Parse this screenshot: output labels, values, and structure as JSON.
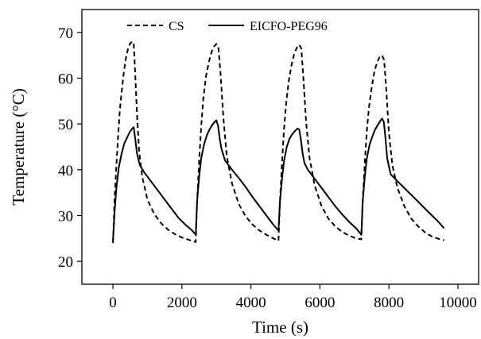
{
  "chart_data": {
    "type": "line",
    "title": "",
    "xlabel": "Time (s)",
    "ylabel": "Temperature (°C)",
    "xlim": [
      -900,
      10600
    ],
    "ylim": [
      15,
      75
    ],
    "xticks": [
      0,
      2000,
      4000,
      6000,
      8000,
      10000
    ],
    "yticks": [
      20,
      30,
      40,
      50,
      60,
      70
    ],
    "grid": false,
    "legend": "top-left",
    "series": [
      {
        "name": "CS",
        "style": "dashed",
        "color": "#000000",
        "x": [
          0,
          50,
          100,
          150,
          200,
          260,
          320,
          380,
          440,
          500,
          560,
          600,
          640,
          700,
          760,
          850,
          1000,
          1200,
          1400,
          1600,
          1800,
          2000,
          2200,
          2400,
          2440,
          2500,
          2560,
          2620,
          2700,
          2780,
          2860,
          2940,
          3000,
          3060,
          3120,
          3200,
          3300,
          3450,
          3650,
          3850,
          4050,
          4250,
          4450,
          4650,
          4800,
          4840,
          4900,
          4960,
          5020,
          5100,
          5180,
          5260,
          5340,
          5400,
          5460,
          5520,
          5600,
          5700,
          5850,
          6050,
          6250,
          6450,
          6650,
          6850,
          7050,
          7200,
          7240,
          7300,
          7360,
          7420,
          7500,
          7580,
          7660,
          7740,
          7800,
          7860,
          7920,
          8000,
          8100,
          8250,
          8450,
          8650,
          8850,
          9050,
          9250,
          9450,
          9600
        ],
        "y": [
          24.0,
          34.0,
          41.0,
          47.5,
          53.0,
          57.5,
          61.5,
          64.5,
          66.5,
          67.6,
          68.0,
          67.8,
          62.0,
          52.0,
          44.0,
          38.5,
          33.5,
          30.3,
          28.3,
          26.9,
          25.9,
          25.2,
          24.7,
          24.2,
          33.0,
          42.0,
          49.5,
          55.5,
          60.5,
          63.5,
          65.8,
          67.0,
          67.5,
          66.5,
          61.0,
          51.5,
          43.0,
          37.0,
          32.5,
          29.8,
          28.0,
          26.7,
          25.8,
          25.0,
          24.5,
          33.0,
          41.5,
          49.0,
          54.5,
          59.5,
          63.0,
          65.5,
          66.8,
          67.3,
          66.5,
          60.0,
          50.5,
          42.5,
          36.5,
          32.0,
          29.3,
          27.6,
          26.4,
          25.6,
          25.0,
          24.8,
          33.0,
          41.5,
          48.5,
          53.5,
          58.0,
          61.5,
          63.5,
          64.8,
          65.0,
          64.0,
          58.0,
          48.0,
          41.0,
          36.0,
          32.0,
          29.3,
          27.6,
          26.3,
          25.4,
          24.9,
          24.6
        ]
      },
      {
        "name": "EICFO-PEG96",
        "style": "solid",
        "color": "#000000",
        "x": [
          0,
          50,
          100,
          170,
          250,
          330,
          410,
          490,
          560,
          600,
          650,
          700,
          780,
          900,
          1100,
          1300,
          1500,
          1700,
          1900,
          2100,
          2300,
          2400,
          2440,
          2500,
          2560,
          2640,
          2720,
          2800,
          2880,
          2950,
          3000,
          3050,
          3100,
          3150,
          3250,
          3450,
          3650,
          3850,
          4050,
          4250,
          4450,
          4650,
          4800,
          4840,
          4900,
          4960,
          5040,
          5120,
          5200,
          5280,
          5350,
          5400,
          5450,
          5500,
          5550,
          5650,
          5850,
          6050,
          6250,
          6450,
          6650,
          6850,
          7050,
          7200,
          7240,
          7300,
          7360,
          7440,
          7520,
          7600,
          7680,
          7760,
          7800,
          7850,
          7900,
          7950,
          8050,
          8250,
          8450,
          8650,
          8850,
          9050,
          9250,
          9450,
          9600
        ],
        "y": [
          24.5,
          31.0,
          36.0,
          40.5,
          43.5,
          45.8,
          47.0,
          48.3,
          49.0,
          49.3,
          46.5,
          43.5,
          41.0,
          39.5,
          37.5,
          35.5,
          33.5,
          31.5,
          29.5,
          28.0,
          26.7,
          25.8,
          33.0,
          38.5,
          42.5,
          45.5,
          47.5,
          48.8,
          49.8,
          50.5,
          50.8,
          49.5,
          46.5,
          44.5,
          42.0,
          40.0,
          38.2,
          36.2,
          34.0,
          32.0,
          30.0,
          28.0,
          26.7,
          33.0,
          38.0,
          42.0,
          45.0,
          46.8,
          47.8,
          48.5,
          49.0,
          48.8,
          46.5,
          43.5,
          41.5,
          40.0,
          38.0,
          36.0,
          34.0,
          32.0,
          30.2,
          28.6,
          27.2,
          25.8,
          33.0,
          38.5,
          42.5,
          45.5,
          47.3,
          48.8,
          49.8,
          50.8,
          51.2,
          50.5,
          47.0,
          42.5,
          39.0,
          37.5,
          36.0,
          34.5,
          33.0,
          31.5,
          30.0,
          28.5,
          27.2
        ]
      }
    ]
  }
}
